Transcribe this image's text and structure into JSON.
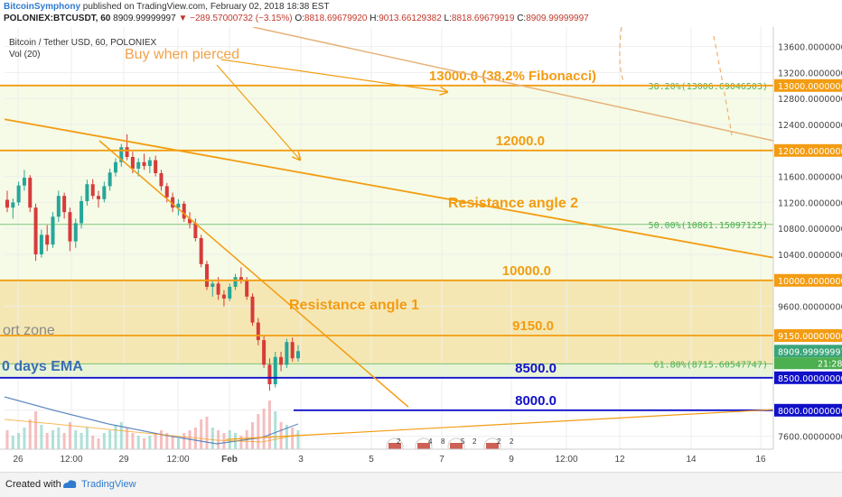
{
  "header": {
    "author": "BitcoinSymphony",
    "published": "published on TradingView.com, February 02, 2018 18:38 EST",
    "symbol": "POLONIEX:BTCUSDT, 60",
    "last": "8909.99999997",
    "change": "−289.57000732 (−3.15%)",
    "ohlc": {
      "o_label": "O:",
      "o": "8818.69679920",
      "h_label": "H:",
      "h": "9013.66129382",
      "l_label": "L:",
      "l": "8818.69679919",
      "c_label": "C:",
      "c": "8909.99999997"
    }
  },
  "footer": {
    "created_with": "Created with",
    "brand": "TradingView"
  },
  "colors": {
    "annotation": "#f39c12",
    "line_orange": "#f39c12",
    "support_blue": "#1010c8",
    "candle_up": "#26a69a",
    "candle_down": "#d63b3b",
    "fib_green": "#4caf50",
    "ema_blue": "#3b6fb4",
    "zone_fill": "#f3e3a6",
    "band_fill": "#f5fbe6"
  },
  "chart_data": {
    "type": "candlestick",
    "legend": {
      "title": "Bitcoin / Tether USD, 60, POLONIEX",
      "volume": "Vol (20)"
    },
    "y_axis": {
      "range": [
        7400,
        13900
      ],
      "ticks": [
        "13600.00000000",
        "13200.00000000",
        "12800.00000000",
        "12400.00000000",
        "11600.00000000",
        "11200.00000000",
        "10800.00000000",
        "10400.00000000",
        "9600.00000000",
        "8000.00000000",
        "7600.00000000"
      ],
      "tick_values": [
        13600,
        13200,
        12800,
        12400,
        11600,
        11200,
        10800,
        10400,
        9600,
        8000,
        7600
      ]
    },
    "price_tags": [
      {
        "label": "13000.00000000",
        "value": 13000,
        "style": "orange"
      },
      {
        "label": "12000.00000000",
        "value": 12000,
        "style": "orange"
      },
      {
        "label": "10000.00000000",
        "value": 10000,
        "style": "orange"
      },
      {
        "label": "9150.00000000",
        "value": 9150,
        "style": "orange"
      },
      {
        "label": "8909.99999997",
        "value": 8910,
        "style": "green",
        "sub": "21:28"
      },
      {
        "label": "8500.00000000",
        "value": 8500,
        "style": "blue"
      },
      {
        "label": "8000.00000000",
        "value": 8000,
        "style": "blue"
      }
    ],
    "x_axis": {
      "ticks": [
        "26",
        "12:00",
        "29",
        "12:00",
        "Feb",
        "3",
        "5",
        "7",
        "9",
        "12:00",
        "12",
        "14",
        "16"
      ],
      "bold": [
        "Feb"
      ]
    },
    "horizontal_levels": [
      {
        "value": 13000,
        "label": "13000.0 (38,2% Fibonacci)",
        "color": "orange",
        "x_from_pct": 0,
        "label_x": 660
      },
      {
        "value": 12000,
        "label": "12000.0",
        "color": "orange",
        "x_from_pct": 0,
        "label_x": 603
      },
      {
        "value": 10000,
        "label": "10000.0",
        "color": "orange",
        "x_from_pct": 0,
        "label_x": 610
      },
      {
        "value": 9150,
        "label": "9150.0",
        "color": "orange",
        "x_from_pct": 0,
        "label_x": 613
      },
      {
        "value": 8500,
        "label": "8500.0",
        "color": "blue",
        "x_from_pct": 0,
        "label_x": 616
      },
      {
        "value": 8000,
        "label": "8000.0",
        "color": "blue",
        "x_from_pct": 0.37,
        "label_x": 616
      }
    ],
    "fibonacci": [
      {
        "value": 13000,
        "label": "38.20%(13006.69046503)"
      },
      {
        "value": 10861,
        "label": "50.00%(10861.15097125)"
      },
      {
        "value": 8715,
        "label": "61.80%(8715.60547747)"
      }
    ],
    "annotations": {
      "buy": "Buy when pierced",
      "resistance2": "Resistance angle 2",
      "resistance1": "Resistance angle 1",
      "support_zone": "ort zone",
      "ema": "0 days EMA"
    },
    "events": [
      "2",
      "4",
      "8",
      "5",
      "2",
      "2",
      "2"
    ],
    "candles": [
      [
        11240,
        11380,
        11050,
        11120
      ],
      [
        11120,
        11260,
        10950,
        11200
      ],
      [
        11200,
        11520,
        11150,
        11460
      ],
      [
        11460,
        11700,
        11380,
        11580
      ],
      [
        11580,
        11620,
        11050,
        11120
      ],
      [
        11120,
        11180,
        10300,
        10400
      ],
      [
        10400,
        10780,
        10350,
        10700
      ],
      [
        10700,
        10850,
        10450,
        10550
      ],
      [
        10550,
        11050,
        10500,
        10980
      ],
      [
        10980,
        11380,
        10900,
        11300
      ],
      [
        11300,
        11350,
        10950,
        11050
      ],
      [
        11050,
        11120,
        10450,
        10600
      ],
      [
        10600,
        10950,
        10500,
        10880
      ],
      [
        10880,
        11300,
        10800,
        11220
      ],
      [
        11220,
        11550,
        11150,
        11480
      ],
      [
        11480,
        11560,
        11250,
        11300
      ],
      [
        11300,
        11380,
        11120,
        11250
      ],
      [
        11250,
        11520,
        11200,
        11450
      ],
      [
        11450,
        11720,
        11380,
        11660
      ],
      [
        11660,
        11880,
        11600,
        11820
      ],
      [
        11820,
        12100,
        11750,
        12050
      ],
      [
        12050,
        12250,
        11850,
        11900
      ],
      [
        11900,
        11980,
        11650,
        11720
      ],
      [
        11720,
        11880,
        11600,
        11820
      ],
      [
        11820,
        11950,
        11700,
        11760
      ],
      [
        11760,
        11900,
        11650,
        11850
      ],
      [
        11850,
        11920,
        11600,
        11650
      ],
      [
        11650,
        11700,
        11380,
        11450
      ],
      [
        11450,
        11500,
        11200,
        11280
      ],
      [
        11280,
        11350,
        11050,
        11120
      ],
      [
        11120,
        11250,
        11000,
        11180
      ],
      [
        11180,
        11220,
        10900,
        10950
      ],
      [
        10950,
        11050,
        10800,
        10880
      ],
      [
        10880,
        10950,
        10600,
        10650
      ],
      [
        10650,
        10700,
        10200,
        10250
      ],
      [
        10250,
        10300,
        9850,
        9900
      ],
      [
        9900,
        10000,
        9750,
        9950
      ],
      [
        9950,
        10050,
        9700,
        9780
      ],
      [
        9780,
        9850,
        9600,
        9720
      ],
      [
        9720,
        9950,
        9680,
        9900
      ],
      [
        9900,
        10100,
        9850,
        10050
      ],
      [
        10050,
        10200,
        9950,
        10000
      ],
      [
        10000,
        10050,
        9700,
        9750
      ],
      [
        9750,
        9800,
        9300,
        9350
      ],
      [
        9350,
        9420,
        9000,
        9080
      ],
      [
        9080,
        9150,
        8650,
        8700
      ],
      [
        8700,
        8800,
        8300,
        8400
      ],
      [
        8400,
        8900,
        8350,
        8820
      ],
      [
        8820,
        8900,
        8600,
        8700
      ],
      [
        8700,
        9100,
        8650,
        9050
      ],
      [
        9050,
        9120,
        8750,
        8800
      ],
      [
        8800,
        9000,
        8750,
        8910
      ]
    ],
    "volume": [
      0.35,
      0.25,
      0.3,
      0.4,
      0.55,
      0.7,
      0.45,
      0.3,
      0.35,
      0.4,
      0.3,
      0.5,
      0.35,
      0.3,
      0.4,
      0.25,
      0.2,
      0.3,
      0.35,
      0.45,
      0.5,
      0.4,
      0.3,
      0.25,
      0.2,
      0.25,
      0.3,
      0.35,
      0.3,
      0.25,
      0.2,
      0.3,
      0.35,
      0.4,
      0.55,
      0.6,
      0.4,
      0.35,
      0.3,
      0.35,
      0.3,
      0.25,
      0.35,
      0.5,
      0.65,
      0.75,
      0.9,
      0.7,
      0.5,
      0.45,
      0.4,
      0.35
    ]
  }
}
